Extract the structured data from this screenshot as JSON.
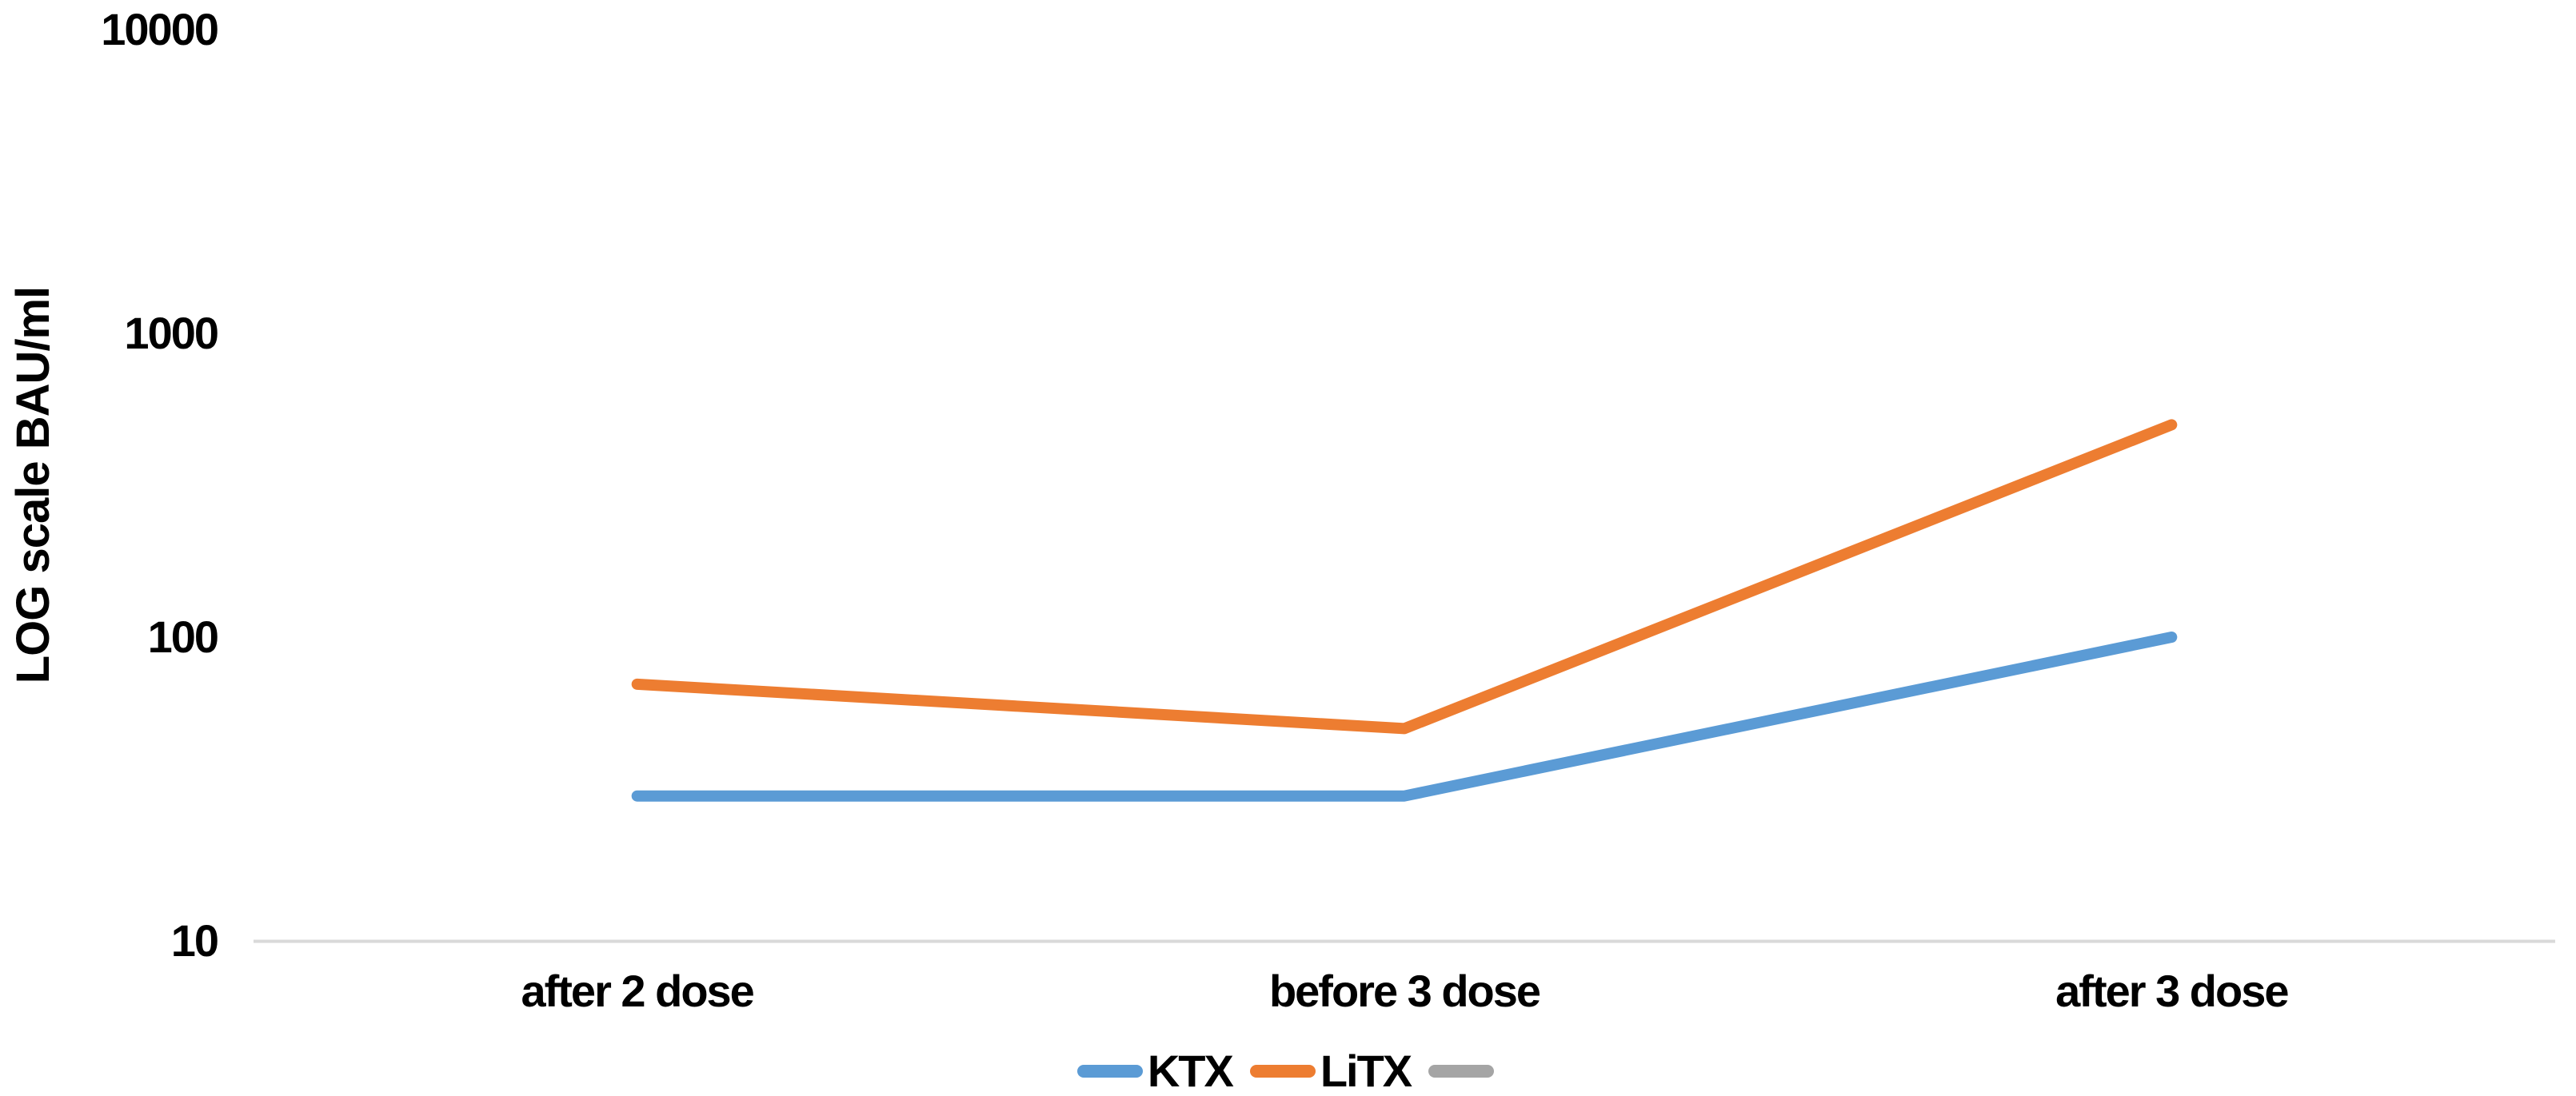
{
  "chart_data": {
    "type": "line",
    "title": "",
    "categories": [
      "after 2 dose",
      "before 3 dose",
      "after 3 dose"
    ],
    "series": [
      {
        "name": "KTX",
        "color": "#5B9BD5",
        "values": [
          30,
          30,
          100
        ]
      },
      {
        "name": "LiTX",
        "color": "#ED7D31",
        "values": [
          70,
          50,
          500
        ]
      },
      {
        "name": "",
        "color": "#A5A5A5",
        "values": []
      }
    ],
    "xlabel": "",
    "ylabel": "LOG scale BAU/ml",
    "yscale": "log",
    "ylim": [
      10,
      10000
    ],
    "yticks": [
      10,
      100,
      1000,
      10000
    ],
    "ytick_labels": [
      "10",
      "100",
      "1000",
      "10000"
    ],
    "grid": false,
    "legend_position": "bottom-center",
    "axis_line_color": "#D9D9D9",
    "text_color": "#000000",
    "background_color": "#FFFFFF"
  }
}
